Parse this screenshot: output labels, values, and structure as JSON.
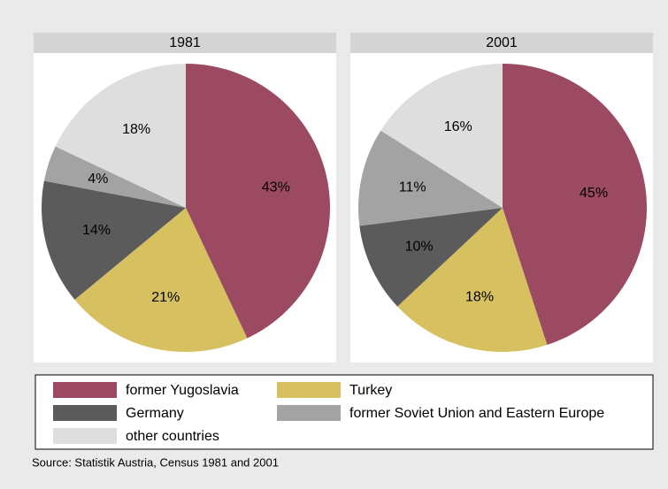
{
  "chart_data": [
    {
      "type": "pie",
      "title": "1981",
      "values": [
        43,
        21,
        14,
        4,
        18
      ],
      "value_labels": [
        "43%",
        "21%",
        "14%",
        "4%",
        "18%"
      ],
      "colors": [
        "#9b4a62",
        "#d6c05f",
        "#5b5b5b",
        "#a3a3a3",
        "#dedede"
      ]
    },
    {
      "type": "pie",
      "title": "2001",
      "values": [
        45,
        18,
        10,
        11,
        16
      ],
      "value_labels": [
        "45%",
        "18%",
        "10%",
        "11%",
        "16%"
      ],
      "colors": [
        "#9b4a62",
        "#d6c05f",
        "#5b5b5b",
        "#a3a3a3",
        "#dedede"
      ]
    }
  ],
  "legend": {
    "items": [
      "former Yugoslavia",
      "Turkey",
      "Germany",
      "former Soviet Union and Eastern Europe",
      "other countries"
    ]
  },
  "source": "Source: Statistik Austria, Census 1981 and 2001"
}
